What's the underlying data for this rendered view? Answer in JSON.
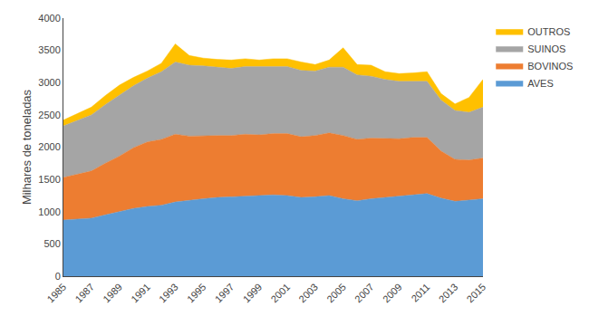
{
  "chart_data": {
    "type": "area",
    "stacked": true,
    "x": [
      1985,
      1986,
      1987,
      1988,
      1989,
      1990,
      1991,
      1992,
      1993,
      1994,
      1995,
      1996,
      1997,
      1998,
      1999,
      2000,
      2001,
      2002,
      2003,
      2004,
      2005,
      2006,
      2007,
      2008,
      2009,
      2010,
      2011,
      2012,
      2013,
      2014,
      2015
    ],
    "series": [
      {
        "name": "AVES",
        "color": "#5B9BD5",
        "values": [
          870,
          880,
          900,
          950,
          1000,
          1050,
          1080,
          1100,
          1150,
          1180,
          1200,
          1220,
          1230,
          1240,
          1250,
          1260,
          1250,
          1220,
          1230,
          1250,
          1200,
          1170,
          1200,
          1220,
          1230,
          1260,
          1280,
          1210,
          1160,
          1180,
          1200
        ]
      },
      {
        "name": "BOVINOS",
        "color": "#ED7D31",
        "values": [
          660,
          700,
          730,
          800,
          860,
          940,
          1000,
          1020,
          1050,
          990,
          980,
          960,
          950,
          960,
          940,
          950,
          960,
          940,
          950,
          970,
          980,
          950,
          940,
          920,
          900,
          890,
          870,
          730,
          650,
          620,
          630
        ]
      },
      {
        "name": "SUINOS",
        "color": "#A5A5A5",
        "values": [
          800,
          830,
          870,
          910,
          940,
          960,
          990,
          1050,
          1120,
          1100,
          1080,
          1060,
          1040,
          1050,
          1060,
          1050,
          1040,
          1030,
          1000,
          1020,
          1060,
          1000,
          960,
          910,
          890,
          870,
          870,
          790,
          760,
          740,
          790
        ]
      },
      {
        "name": "OUTROS",
        "color": "#FFC000",
        "values": [
          90,
          110,
          120,
          140,
          160,
          130,
          110,
          130,
          280,
          150,
          120,
          120,
          130,
          120,
          100,
          110,
          120,
          130,
          100,
          110,
          300,
          160,
          170,
          120,
          120,
          130,
          150,
          100,
          100,
          230,
          430
        ]
      }
    ],
    "ylabel": "Milhares de toneladas",
    "xlim": [
      1985,
      2015
    ],
    "xticks": [
      1985,
      1987,
      1989,
      1991,
      1993,
      1995,
      1997,
      1999,
      2001,
      2003,
      2005,
      2007,
      2009,
      2011,
      2013,
      2015
    ],
    "ylim": [
      0,
      4000
    ],
    "yticks": [
      0,
      500,
      1000,
      1500,
      2000,
      2500,
      3000,
      3500,
      4000
    ],
    "grid": false,
    "legend": "right"
  }
}
